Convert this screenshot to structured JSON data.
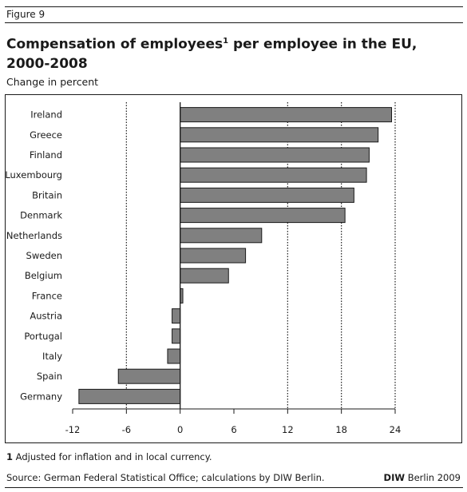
{
  "figure_label": "Figure 9",
  "title_main": "Compensation of employees",
  "title_sup": "1",
  "title_rest": " per employee in the EU, 2000-2008",
  "subtitle": "Change in percent",
  "footnote": {
    "number": "1",
    "text": " Adjusted for inflation and in local currency."
  },
  "source": "Source: German Federal Statistical Office; calculations by DIW Berlin.",
  "credit": {
    "brand": "DIW",
    "text": " Berlin 2009"
  },
  "colors": {
    "bar_fill": "#808080",
    "bar_stroke": "#1a1a1a",
    "text": "#1a1a1a"
  },
  "chart_data": {
    "type": "bar",
    "orientation": "horizontal",
    "categories": [
      "Ireland",
      "Greece",
      "Finland",
      "Luxembourg",
      "Britain",
      "Denmark",
      "Netherlands",
      "Sweden",
      "Belgium",
      "France",
      "Austria",
      "Portugal",
      "Italy",
      "Spain",
      "Germany"
    ],
    "values": [
      23.6,
      22.1,
      21.1,
      20.8,
      19.4,
      18.4,
      9.1,
      7.3,
      5.4,
      0.3,
      -0.9,
      -0.9,
      -1.4,
      -6.9,
      -11.3
    ],
    "xlim": [
      -12,
      24
    ],
    "xticks": [
      "-12",
      "-6",
      "0",
      "6",
      "12",
      "18",
      "24"
    ],
    "gridlines": "vertical dotted at -6, 12, 18, 24",
    "legend": "none"
  }
}
